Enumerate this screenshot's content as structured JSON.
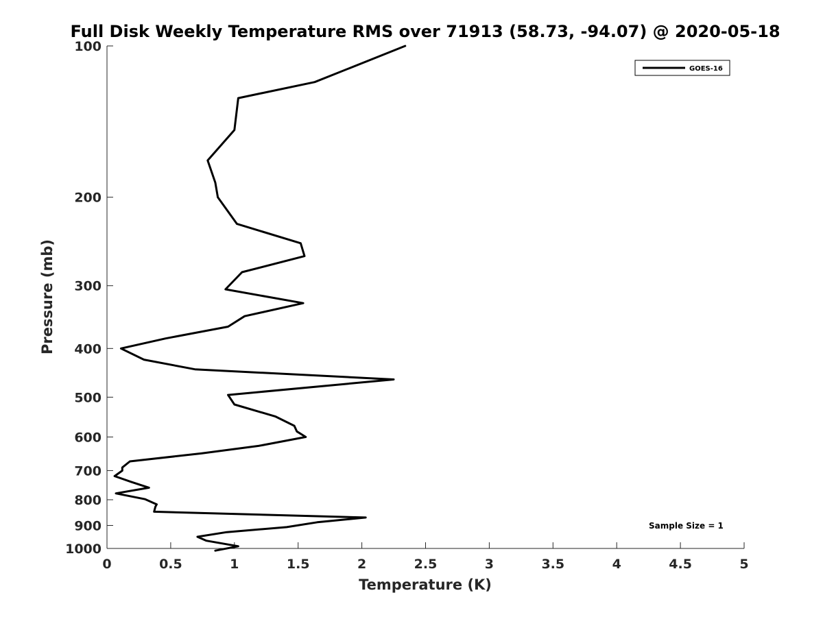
{
  "chart_data": {
    "type": "line",
    "title": "Full Disk Weekly Temperature RMS over 71913 (58.73, -94.07) @ 2020-05-18",
    "xlabel": "Temperature (K)",
    "ylabel": "Pressure (mb)",
    "xlim": [
      0,
      5
    ],
    "ylim": [
      100,
      1000
    ],
    "y_scale": "log",
    "y_reversed": true,
    "grid": false,
    "legend_position": "top-right",
    "x_ticks": [
      "0",
      "0.5",
      "1",
      "1.5",
      "2",
      "2.5",
      "3",
      "3.5",
      "4",
      "4.5",
      "5"
    ],
    "y_ticks": [
      "100",
      "200",
      "300",
      "400",
      "500",
      "600",
      "700",
      "800",
      "900",
      "1000"
    ],
    "annotation": "Sample Size = 1",
    "series": [
      {
        "name": "GOES-16",
        "color": "#000000",
        "x": [
          2.34,
          1.63,
          1.03,
          1.0,
          0.79,
          0.85,
          0.87,
          1.02,
          1.52,
          1.55,
          1.06,
          0.93,
          1.54,
          1.08,
          0.95,
          0.46,
          0.11,
          0.29,
          0.69,
          2.25,
          0.95,
          1.0,
          1.32,
          1.47,
          1.49,
          1.56,
          1.19,
          0.74,
          0.18,
          0.12,
          0.12,
          0.06,
          0.19,
          0.33,
          0.07,
          0.3,
          0.39,
          0.38,
          0.37,
          2.03,
          1.65,
          1.41,
          0.94,
          0.71,
          0.78,
          1.03,
          0.85
        ],
        "y": [
          100,
          118,
          127,
          147,
          169,
          187,
          200,
          226,
          247,
          262,
          282,
          305,
          325,
          345,
          362,
          382,
          400,
          421,
          440,
          461,
          495,
          517,
          546,
          570,
          585,
          600,
          625,
          647,
          671,
          690,
          700,
          718,
          737,
          757,
          777,
          798,
          817,
          826,
          845,
          868,
          887,
          907,
          928,
          948,
          965,
          990,
          1010
        ]
      }
    ]
  }
}
